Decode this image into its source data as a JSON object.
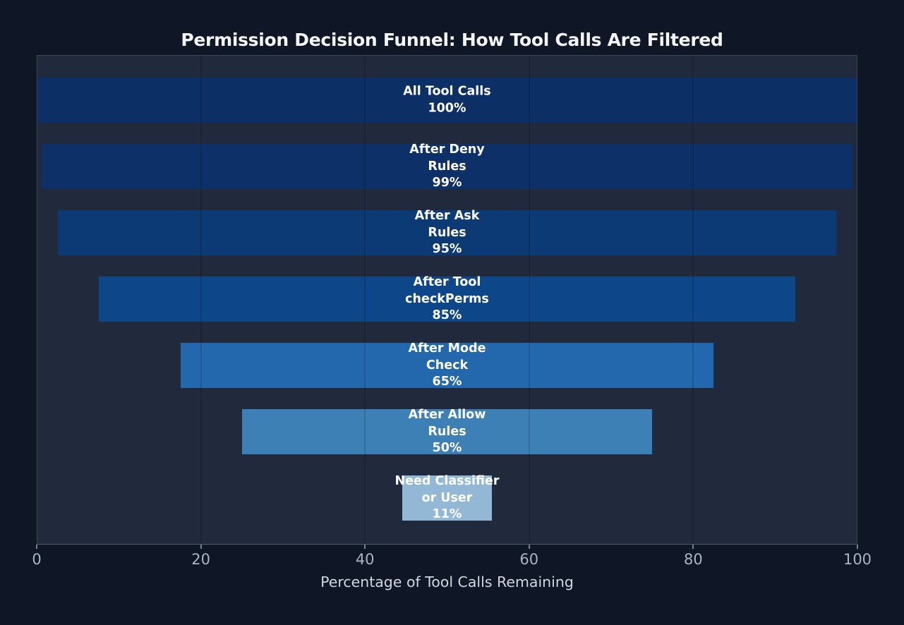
{
  "title": "Permission Decision Funnel: How Tool Calls Are Filtered",
  "chart_data": {
    "type": "bar",
    "subtype": "centered-horizontal-funnel",
    "title": "Permission Decision Funnel: How Tool Calls Are Filtered",
    "xlabel": "Percentage of Tool Calls Remaining",
    "ylabel": "",
    "xlim": [
      0,
      100
    ],
    "x_ticks": [
      0,
      20,
      40,
      60,
      80,
      100
    ],
    "grid": true,
    "legend": false,
    "value_suffix": "%",
    "stages": [
      {
        "label": "All Tool Calls",
        "label_lines": [
          "All Tool Calls"
        ],
        "value": 100,
        "display_value": "100%",
        "color": "#0c2f66"
      },
      {
        "label": "After Deny Rules",
        "label_lines": [
          "After Deny",
          "Rules"
        ],
        "value": 99,
        "display_value": "99%",
        "color": "#0c3067"
      },
      {
        "label": "After Ask Rules",
        "label_lines": [
          "After Ask",
          "Rules"
        ],
        "value": 95,
        "display_value": "95%",
        "color": "#0c3a75"
      },
      {
        "label": "After Tool checkPerms",
        "label_lines": [
          "After Tool",
          "checkPerms"
        ],
        "value": 85,
        "display_value": "85%",
        "color": "#0d4689"
      },
      {
        "label": "After Mode Check",
        "label_lines": [
          "After Mode",
          "Check"
        ],
        "value": 65,
        "display_value": "65%",
        "color": "#2368ac"
      },
      {
        "label": "After Allow Rules",
        "label_lines": [
          "After Allow",
          "Rules"
        ],
        "value": 50,
        "display_value": "50%",
        "color": "#3c80b6"
      },
      {
        "label": "Need Classifier or User",
        "label_lines": [
          "Need Classifier",
          "or User"
        ],
        "value": 11,
        "display_value": "11%",
        "color": "#93b8d5"
      }
    ]
  },
  "colors": {
    "page_background": "#0f1727",
    "plot_background": "#212a3c",
    "plot_border": "#3d4654",
    "plot_border_bottom": "#525d6e",
    "gridline": "rgba(0,0,0,0.14)",
    "bar_label_text": "#ffffff",
    "tick_text": "#aab4c4",
    "axis_label_text": "#d2d8e2",
    "title_text": "#f5f6f8",
    "tick_mark": "#78828f"
  }
}
